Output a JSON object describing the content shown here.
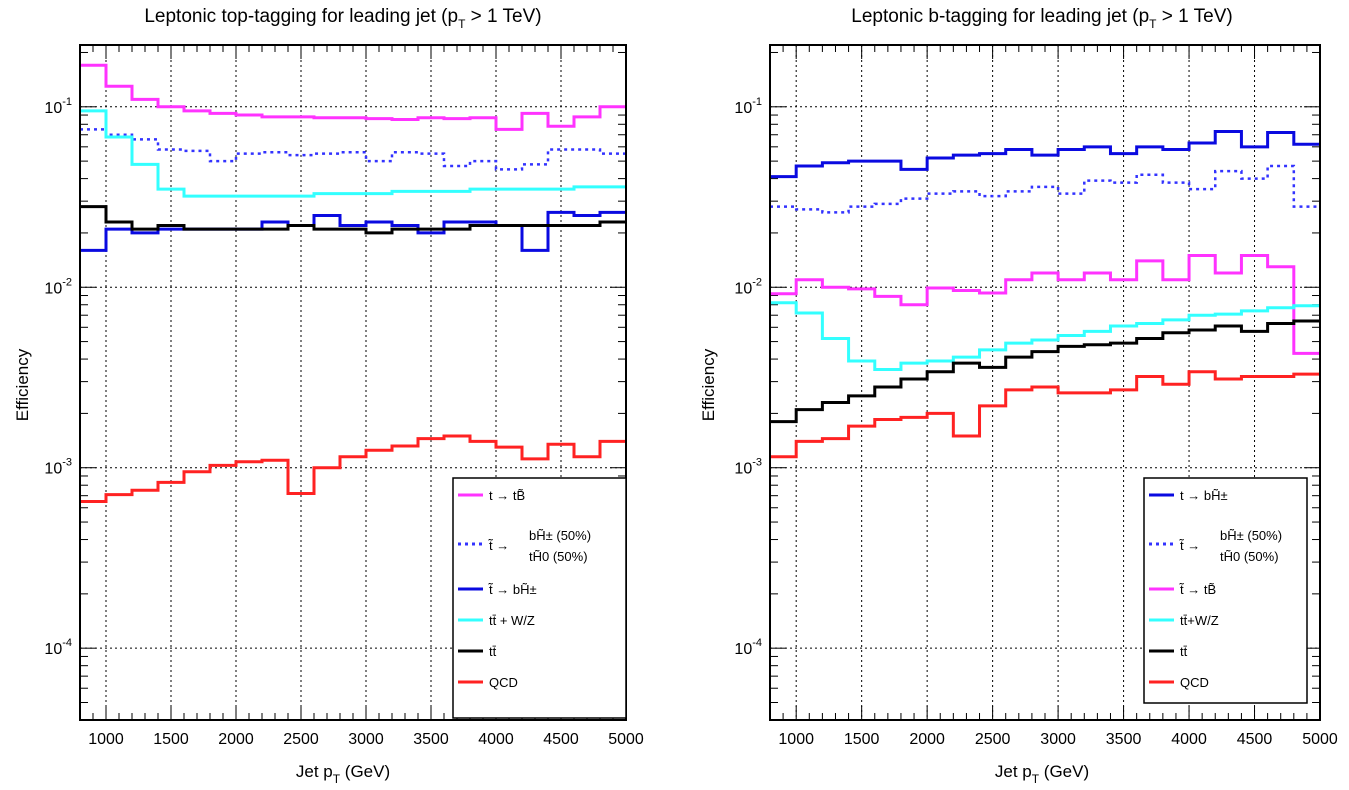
{
  "chart_data": [
    {
      "type": "line",
      "title": "Leptonic top-tagging for leading jet (p_T > 1 TeV)",
      "title_parts": {
        "before": "Leptonic top-tagging for leading jet (p",
        "sub": "T",
        "after": " > 1 TeV)"
      },
      "xlabel": "Jet p_T (GeV)",
      "xlabel_parts": {
        "before": "Jet p",
        "sub": "T",
        "after": " (GeV)"
      },
      "ylabel": "Efficiency",
      "xlim": [
        800,
        5000
      ],
      "ylim": [
        4e-05,
        0.22
      ],
      "yscale": "log",
      "grid": true,
      "histogram": true,
      "xticks": [
        1000,
        1500,
        2000,
        2500,
        3000,
        3500,
        4000,
        4500,
        5000
      ],
      "yticks": [
        {
          "value": 0.0001,
          "base": "10",
          "exp": "-4"
        },
        {
          "value": 0.001,
          "base": "10",
          "exp": "-3"
        },
        {
          "value": 0.01,
          "base": "10",
          "exp": "-2"
        },
        {
          "value": 0.1,
          "base": "10",
          "exp": "-1"
        }
      ],
      "legend_position": "bottom-right",
      "bin_edges": [
        800,
        1000,
        1200,
        1400,
        1600,
        1800,
        2000,
        2200,
        2400,
        2600,
        2800,
        3000,
        3200,
        3400,
        3600,
        3800,
        4000,
        4200,
        4400,
        4600,
        4800,
        5000
      ],
      "series": [
        {
          "name": "t → tB̃",
          "color": "#ff33ff",
          "dash": "solid",
          "values": [
            0.17,
            0.13,
            0.11,
            0.1,
            0.095,
            0.092,
            0.09,
            0.088,
            0.088,
            0.087,
            0.087,
            0.086,
            0.085,
            0.087,
            0.086,
            0.087,
            0.075,
            0.092,
            0.078,
            0.088,
            0.1
          ]
        },
        {
          "name": "t̃ → bH̃± (50%) / tH̃0 (50%)",
          "color": "#3333ff",
          "dash": "dotted",
          "values": [
            0.075,
            0.07,
            0.066,
            0.058,
            0.057,
            0.05,
            0.055,
            0.056,
            0.054,
            0.055,
            0.056,
            0.05,
            0.056,
            0.055,
            0.047,
            0.05,
            0.045,
            0.048,
            0.058,
            0.058,
            0.055
          ]
        },
        {
          "name": "t̃ → bH̃±",
          "color": "#0a0ae0",
          "dash": "solid",
          "values": [
            0.016,
            0.021,
            0.02,
            0.021,
            0.021,
            0.021,
            0.021,
            0.023,
            0.022,
            0.025,
            0.022,
            0.023,
            0.022,
            0.02,
            0.023,
            0.023,
            0.022,
            0.016,
            0.026,
            0.025,
            0.026
          ]
        },
        {
          "name": "tt̄ + W/Z",
          "color": "#33ffff",
          "dash": "solid",
          "values": [
            0.095,
            0.068,
            0.048,
            0.035,
            0.032,
            0.032,
            0.032,
            0.032,
            0.032,
            0.033,
            0.033,
            0.033,
            0.034,
            0.034,
            0.034,
            0.035,
            0.035,
            0.035,
            0.035,
            0.036,
            0.036
          ]
        },
        {
          "name": "tt̄",
          "color": "#000000",
          "dash": "solid",
          "values": [
            0.028,
            0.023,
            0.021,
            0.022,
            0.021,
            0.021,
            0.021,
            0.021,
            0.022,
            0.021,
            0.021,
            0.02,
            0.021,
            0.021,
            0.021,
            0.022,
            0.022,
            0.022,
            0.022,
            0.022,
            0.023
          ]
        },
        {
          "name": "QCD",
          "color": "#ff2222",
          "dash": "solid",
          "values": [
            0.00065,
            0.00071,
            0.00075,
            0.00083,
            0.00095,
            0.00103,
            0.00108,
            0.0011,
            0.00072,
            0.001,
            0.00115,
            0.00125,
            0.00132,
            0.00145,
            0.0015,
            0.0014,
            0.0013,
            0.00112,
            0.00135,
            0.00115,
            0.0014
          ]
        }
      ]
    },
    {
      "type": "line",
      "title": "Leptonic b-tagging for leading jet (p_T > 1 TeV)",
      "title_parts": {
        "before": "Leptonic b-tagging for leading jet (p",
        "sub": "T",
        "after": " > 1 TeV)"
      },
      "xlabel": "Jet p_T (GeV)",
      "xlabel_parts": {
        "before": "Jet p",
        "sub": "T",
        "after": " (GeV)"
      },
      "ylabel": "Efficiency",
      "xlim": [
        800,
        5000
      ],
      "ylim": [
        4e-05,
        0.22
      ],
      "yscale": "log",
      "grid": true,
      "histogram": true,
      "xticks": [
        1000,
        1500,
        2000,
        2500,
        3000,
        3500,
        4000,
        4500,
        5000
      ],
      "yticks": [
        {
          "value": 0.0001,
          "base": "10",
          "exp": "-4"
        },
        {
          "value": 0.001,
          "base": "10",
          "exp": "-3"
        },
        {
          "value": 0.01,
          "base": "10",
          "exp": "-2"
        },
        {
          "value": 0.1,
          "base": "10",
          "exp": "-1"
        }
      ],
      "legend_position": "bottom-right",
      "bin_edges": [
        800,
        1000,
        1200,
        1400,
        1600,
        1800,
        2000,
        2200,
        2400,
        2600,
        2800,
        3000,
        3200,
        3400,
        3600,
        3800,
        4000,
        4200,
        4400,
        4600,
        4800,
        5000
      ],
      "series": [
        {
          "name": "t → bH̃±",
          "color": "#0a0ae0",
          "dash": "solid",
          "values": [
            0.041,
            0.047,
            0.049,
            0.05,
            0.05,
            0.045,
            0.052,
            0.054,
            0.055,
            0.058,
            0.054,
            0.058,
            0.06,
            0.055,
            0.06,
            0.058,
            0.063,
            0.073,
            0.06,
            0.072,
            0.062
          ]
        },
        {
          "name": "t̃ → bH̃± (50%) / tH̃0 (50%)",
          "color": "#3333ff",
          "dash": "dotted",
          "values": [
            0.028,
            0.027,
            0.026,
            0.028,
            0.029,
            0.031,
            0.033,
            0.034,
            0.032,
            0.034,
            0.036,
            0.033,
            0.039,
            0.038,
            0.042,
            0.038,
            0.035,
            0.044,
            0.04,
            0.047,
            0.028
          ]
        },
        {
          "name": "t̃ → tB̃",
          "color": "#ff33ff",
          "dash": "solid",
          "values": [
            0.0092,
            0.011,
            0.01,
            0.0098,
            0.0089,
            0.008,
            0.0099,
            0.0096,
            0.0093,
            0.011,
            0.012,
            0.011,
            0.012,
            0.011,
            0.014,
            0.011,
            0.015,
            0.012,
            0.015,
            0.013,
            0.0043
          ]
        },
        {
          "name": "tt̄+W/Z",
          "color": "#33ffff",
          "dash": "solid",
          "values": [
            0.0082,
            0.0072,
            0.0052,
            0.0039,
            0.0035,
            0.0038,
            0.0039,
            0.0041,
            0.0045,
            0.0049,
            0.0051,
            0.0054,
            0.0057,
            0.0061,
            0.0063,
            0.0066,
            0.007,
            0.0071,
            0.0074,
            0.0077,
            0.0079
          ]
        },
        {
          "name": "tt̄",
          "color": "#000000",
          "dash": "solid",
          "values": [
            0.0018,
            0.0021,
            0.0023,
            0.0025,
            0.0028,
            0.0031,
            0.0034,
            0.0038,
            0.0036,
            0.0041,
            0.0044,
            0.0047,
            0.0048,
            0.0049,
            0.0052,
            0.0056,
            0.0058,
            0.0061,
            0.0057,
            0.0063,
            0.0065
          ]
        },
        {
          "name": "QCD",
          "color": "#ff2222",
          "dash": "solid",
          "values": [
            0.00115,
            0.0014,
            0.00145,
            0.0017,
            0.00185,
            0.0019,
            0.002,
            0.0015,
            0.0022,
            0.0027,
            0.0028,
            0.0026,
            0.0026,
            0.0027,
            0.0032,
            0.0029,
            0.0034,
            0.0031,
            0.0032,
            0.0032,
            0.0033
          ]
        }
      ]
    }
  ]
}
